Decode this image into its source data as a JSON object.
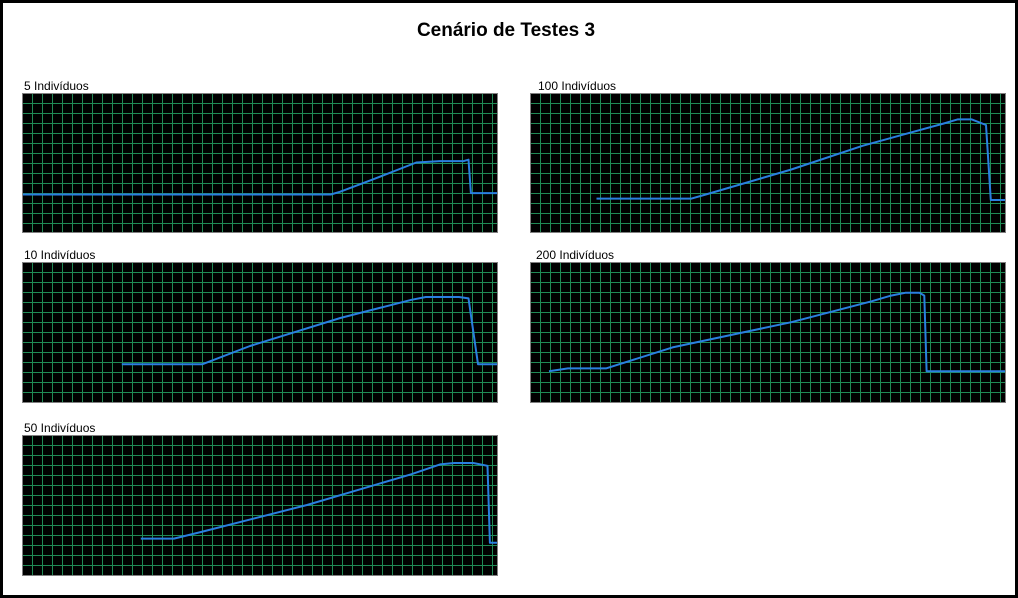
{
  "title": "Cenário de Testes 3",
  "colors": {
    "background": "#000000",
    "grid": "#1f8a55",
    "line": "#2a7fe0",
    "border": "#808080"
  },
  "chart_data": [
    {
      "type": "line",
      "title": "5 Indivíduos",
      "grid": true,
      "ylim": [
        0,
        1
      ],
      "series": [
        {
          "values": [
            [
              0.0,
              0.27
            ],
            [
              0.65,
              0.27
            ],
            [
              0.67,
              0.29
            ],
            [
              0.74,
              0.38
            ],
            [
              0.83,
              0.5
            ],
            [
              0.88,
              0.51
            ],
            [
              0.93,
              0.51
            ],
            [
              0.94,
              0.52
            ],
            [
              0.945,
              0.28
            ],
            [
              1.0,
              0.28
            ]
          ]
        }
      ]
    },
    {
      "type": "line",
      "title": "100 Indivíduos",
      "grid": true,
      "ylim": [
        0,
        1
      ],
      "series": [
        {
          "values": [
            [
              0.14,
              0.24
            ],
            [
              0.34,
              0.24
            ],
            [
              0.37,
              0.27
            ],
            [
              0.55,
              0.45
            ],
            [
              0.7,
              0.62
            ],
            [
              0.87,
              0.78
            ],
            [
              0.9,
              0.81
            ],
            [
              0.93,
              0.81
            ],
            [
              0.96,
              0.77
            ],
            [
              0.97,
              0.23
            ],
            [
              1.0,
              0.23
            ]
          ]
        }
      ]
    },
    {
      "type": "line",
      "title": "10 Indivíduos",
      "grid": true,
      "ylim": [
        0,
        1
      ],
      "series": [
        {
          "values": [
            [
              0.21,
              0.27
            ],
            [
              0.38,
              0.27
            ],
            [
              0.48,
              0.4
            ],
            [
              0.67,
              0.6
            ],
            [
              0.82,
              0.73
            ],
            [
              0.85,
              0.75
            ],
            [
              0.89,
              0.75
            ],
            [
              0.92,
              0.75
            ],
            [
              0.94,
              0.74
            ],
            [
              0.96,
              0.27
            ],
            [
              1.0,
              0.27
            ]
          ]
        }
      ]
    },
    {
      "type": "line",
      "title": "200 Indivíduos",
      "grid": true,
      "ylim": [
        0,
        1
      ],
      "series": [
        {
          "values": [
            [
              0.04,
              0.22
            ],
            [
              0.08,
              0.24
            ],
            [
              0.16,
              0.24
            ],
            [
              0.3,
              0.39
            ],
            [
              0.55,
              0.57
            ],
            [
              0.72,
              0.72
            ],
            [
              0.76,
              0.76
            ],
            [
              0.79,
              0.78
            ],
            [
              0.82,
              0.78
            ],
            [
              0.83,
              0.76
            ],
            [
              0.835,
              0.22
            ],
            [
              1.0,
              0.22
            ]
          ]
        }
      ]
    },
    {
      "type": "line",
      "title": "50 Indivíduos",
      "grid": true,
      "ylim": [
        0,
        1
      ],
      "series": [
        {
          "values": [
            [
              0.25,
              0.26
            ],
            [
              0.32,
              0.26
            ],
            [
              0.38,
              0.31
            ],
            [
              0.6,
              0.5
            ],
            [
              0.82,
              0.72
            ],
            [
              0.88,
              0.79
            ],
            [
              0.91,
              0.8
            ],
            [
              0.95,
              0.8
            ],
            [
              0.98,
              0.78
            ],
            [
              0.985,
              0.23
            ],
            [
              1.0,
              0.23
            ]
          ]
        }
      ]
    }
  ]
}
